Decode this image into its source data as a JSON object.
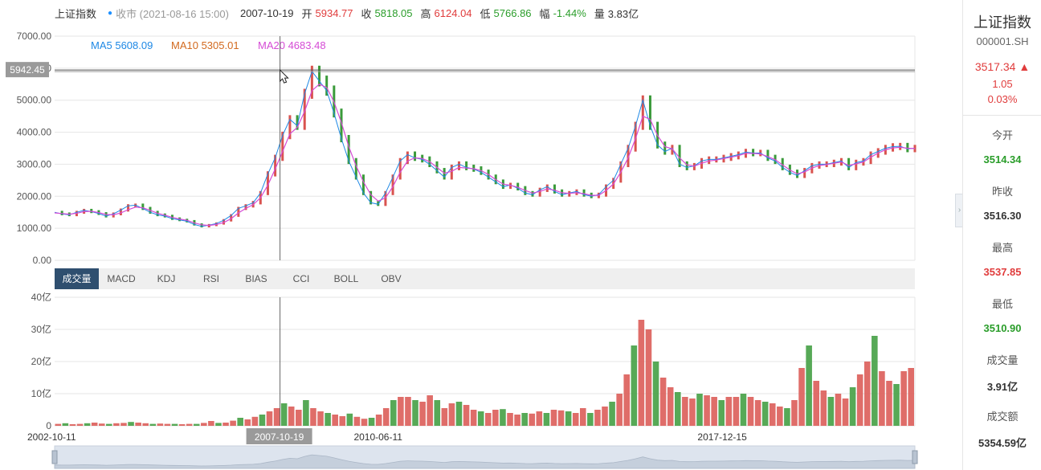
{
  "header": {
    "name": "上证指数",
    "status": "收市 (2021-08-16 15:00)",
    "date": "2007-10-19",
    "open_label": "开",
    "open": "5934.77",
    "close_label": "收",
    "close": "5818.05",
    "high_label": "高",
    "high": "6124.04",
    "low_label": "低",
    "low": "5766.86",
    "range_label": "幅",
    "range": "-1.44%",
    "vol_label": "量",
    "vol": "3.83亿"
  },
  "ma": [
    {
      "label": "MA5",
      "value": "5608.09",
      "color": "#1e88e5"
    },
    {
      "label": "MA10",
      "value": "5305.01",
      "color": "#d2691e"
    },
    {
      "label": "MA20",
      "value": "4683.48",
      "color": "#d54bd5"
    }
  ],
  "cursor": {
    "price": "5942.45",
    "date": "2007-10-19"
  },
  "tabs": [
    "成交量",
    "MACD",
    "KDJ",
    "RSI",
    "BIAS",
    "CCI",
    "BOLL",
    "OBV"
  ],
  "sidebar": {
    "title": "上证指数",
    "code": "000001.SH",
    "price": "3517.34",
    "change": "1.05",
    "pct": "0.03%",
    "items": [
      {
        "label": "今开",
        "value": "3514.34",
        "tone": "green"
      },
      {
        "label": "昨收",
        "value": "3516.30",
        "tone": "dark"
      },
      {
        "label": "最高",
        "value": "3537.85",
        "tone": "red"
      },
      {
        "label": "最低",
        "value": "3510.90",
        "tone": "green"
      },
      {
        "label": "成交量",
        "value": "3.91亿",
        "tone": "dark"
      },
      {
        "label": "成交额",
        "value": "5354.59亿",
        "tone": "dark"
      }
    ]
  },
  "chart_data": {
    "type": "line",
    "price_axis": {
      "ticks": [
        "7000.00",
        "6000.00",
        "5000.00",
        "4000.00",
        "3000.00",
        "2000.00",
        "1000.00",
        "0.00"
      ],
      "ylim": [
        0,
        7000
      ]
    },
    "volume_axis": {
      "ticks": [
        "40亿",
        "30亿",
        "20亿",
        "10亿",
        "0"
      ],
      "ylim": [
        0,
        40
      ]
    },
    "x_ticks": [
      "2002-10-11",
      "2007-10-19",
      "2010-06-11",
      "2017-12-15"
    ],
    "x_tick_pos": [
      0,
      0.262,
      0.376,
      0.776
    ],
    "cursor_pos": 0.262,
    "series": [
      {
        "name": "收",
        "values": [
          1500,
          1450,
          1420,
          1500,
          1560,
          1520,
          1460,
          1380,
          1450,
          1570,
          1700,
          1720,
          1620,
          1500,
          1420,
          1380,
          1300,
          1260,
          1220,
          1120,
          1060,
          1100,
          1150,
          1250,
          1400,
          1620,
          1700,
          1800,
          2100,
          2700,
          3200,
          3900,
          4400,
          4200,
          5200,
          5900,
          5600,
          5300,
          4600,
          3800,
          3100,
          2600,
          2100,
          1800,
          1750,
          2100,
          2600,
          3100,
          3300,
          3200,
          3150,
          3000,
          2800,
          2600,
          2900,
          3000,
          2900,
          2850,
          2750,
          2600,
          2450,
          2300,
          2350,
          2250,
          2100,
          2050,
          2200,
          2300,
          2150,
          2050,
          2100,
          2150,
          2050,
          2000,
          2050,
          2300,
          2500,
          3000,
          3500,
          4200,
          5000,
          4200,
          3600,
          3400,
          3500,
          3000,
          2900,
          2950,
          3100,
          3150,
          3150,
          3200,
          3250,
          3300,
          3380,
          3350,
          3350,
          3200,
          3100,
          2900,
          2750,
          2650,
          2800,
          2950,
          3000,
          3000,
          3050,
          3100,
          2900,
          3050,
          3100,
          3300,
          3400,
          3500,
          3550,
          3560,
          3480,
          3500
        ]
      },
      {
        "name": "MA20",
        "values": [
          1480,
          1460,
          1440,
          1470,
          1520,
          1530,
          1490,
          1430,
          1420,
          1480,
          1580,
          1660,
          1640,
          1560,
          1470,
          1410,
          1340,
          1290,
          1250,
          1170,
          1110,
          1090,
          1120,
          1180,
          1300,
          1480,
          1620,
          1740,
          1950,
          2350,
          2850,
          3400,
          3950,
          4150,
          4650,
          5300,
          5500,
          5400,
          4950,
          4300,
          3550,
          2950,
          2450,
          2050,
          1850,
          1950,
          2300,
          2750,
          3100,
          3200,
          3180,
          3080,
          2900,
          2720,
          2780,
          2900,
          2880,
          2860,
          2800,
          2680,
          2520,
          2380,
          2340,
          2280,
          2180,
          2100,
          2150,
          2230,
          2190,
          2110,
          2090,
          2110,
          2080,
          2030,
          2030,
          2180,
          2380,
          2750,
          3200,
          3800,
          4500,
          4400,
          3900,
          3550,
          3480,
          3200,
          2980,
          2940,
          3030,
          3100,
          3130,
          3180,
          3220,
          3270,
          3340,
          3340,
          3320,
          3240,
          3140,
          2980,
          2820,
          2700,
          2760,
          2880,
          2960,
          2990,
          3030,
          3070,
          2960,
          3010,
          3070,
          3220,
          3350,
          3450,
          3510,
          3530,
          3500,
          3490
        ]
      }
    ],
    "volume": [
      0.6,
      0.8,
      0.5,
      0.6,
      0.8,
      1.0,
      0.7,
      0.6,
      0.8,
      0.9,
      1.2,
      1.0,
      0.8,
      0.6,
      0.7,
      0.6,
      0.6,
      0.5,
      0.6,
      0.6,
      0.9,
      1.5,
      0.9,
      1.0,
      1.6,
      2.5,
      2.0,
      2.8,
      3.5,
      4.5,
      5.5,
      7.0,
      6.0,
      5.0,
      8.0,
      5.5,
      4.5,
      4.0,
      3.5,
      3.0,
      3.8,
      2.8,
      2.2,
      2.5,
      3.5,
      5.5,
      8.0,
      9.0,
      9.0,
      8.0,
      7.5,
      9.5,
      8.0,
      5.5,
      7.0,
      7.5,
      6.5,
      5.0,
      4.5,
      4.0,
      5.0,
      5.2,
      4.0,
      3.5,
      4.0,
      3.8,
      4.5,
      4.0,
      5.0,
      4.8,
      4.5,
      4.0,
      5.5,
      4.0,
      5.0,
      6.0,
      7.5,
      10.0,
      16.0,
      25.0,
      33.0,
      30.0,
      20.0,
      15.0,
      12.0,
      10.5,
      9.0,
      8.5,
      10.0,
      9.5,
      9.0,
      8.0,
      9.0,
      9.0,
      10.0,
      9.0,
      8.0,
      7.5,
      7.0,
      6.0,
      5.5,
      8.0,
      18.0,
      25.0,
      14.0,
      11.0,
      9.0,
      10.0,
      8.5,
      12.0,
      16.0,
      20.0,
      28.0,
      17.0,
      14.0,
      13.0,
      17.0,
      18.0
    ]
  }
}
